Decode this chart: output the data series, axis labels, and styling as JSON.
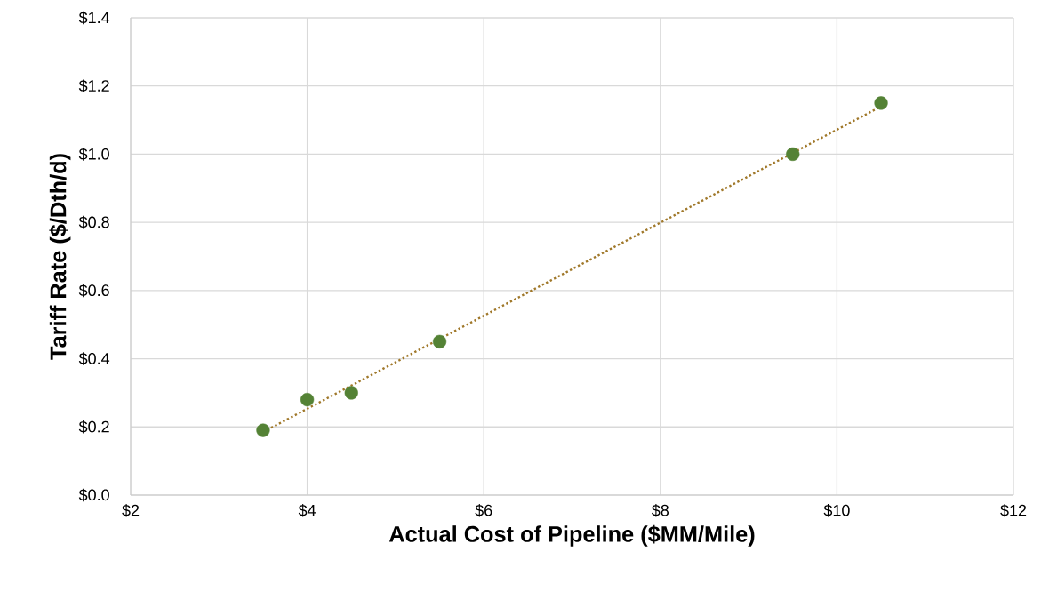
{
  "chart_data": {
    "type": "scatter",
    "xlabel": "Actual Cost of Pipeline ($MM/Mile)",
    "ylabel": "Tariff Rate ($/Dth/d)",
    "xlim": [
      2,
      12
    ],
    "xticks": [
      {
        "value": 2,
        "label": "$2"
      },
      {
        "value": 4,
        "label": "$4"
      },
      {
        "value": 6,
        "label": "$6"
      },
      {
        "value": 8,
        "label": "$8"
      },
      {
        "value": 10,
        "label": "$10"
      },
      {
        "value": 12,
        "label": "$12"
      }
    ],
    "ylim": [
      0,
      1.4
    ],
    "yticks": [
      {
        "value": 0,
        "label": "$0.0"
      },
      {
        "value": 0.2,
        "label": "$0.2"
      },
      {
        "value": 0.4,
        "label": "$0.4"
      },
      {
        "value": 0.6,
        "label": "$0.6"
      },
      {
        "value": 0.8,
        "label": "$0.8"
      },
      {
        "value": 1.0,
        "label": "$1.0"
      },
      {
        "value": 1.2,
        "label": "$1.2"
      },
      {
        "value": 1.4,
        "label": "$1.4"
      }
    ],
    "grid": true,
    "series": [
      {
        "type": "line",
        "color": "#a0782a",
        "line_style": "dotted",
        "marker": "none",
        "x": [
          3.5,
          10.5
        ],
        "values": [
          0.185,
          1.14
        ]
      },
      {
        "color": "#548235",
        "marker": "circle",
        "x": [
          3.5,
          4,
          4.5,
          5.5,
          9.5,
          10.5
        ],
        "values": [
          0.19,
          0.28,
          0.3,
          0.45,
          1.0,
          1.15
        ]
      }
    ]
  }
}
